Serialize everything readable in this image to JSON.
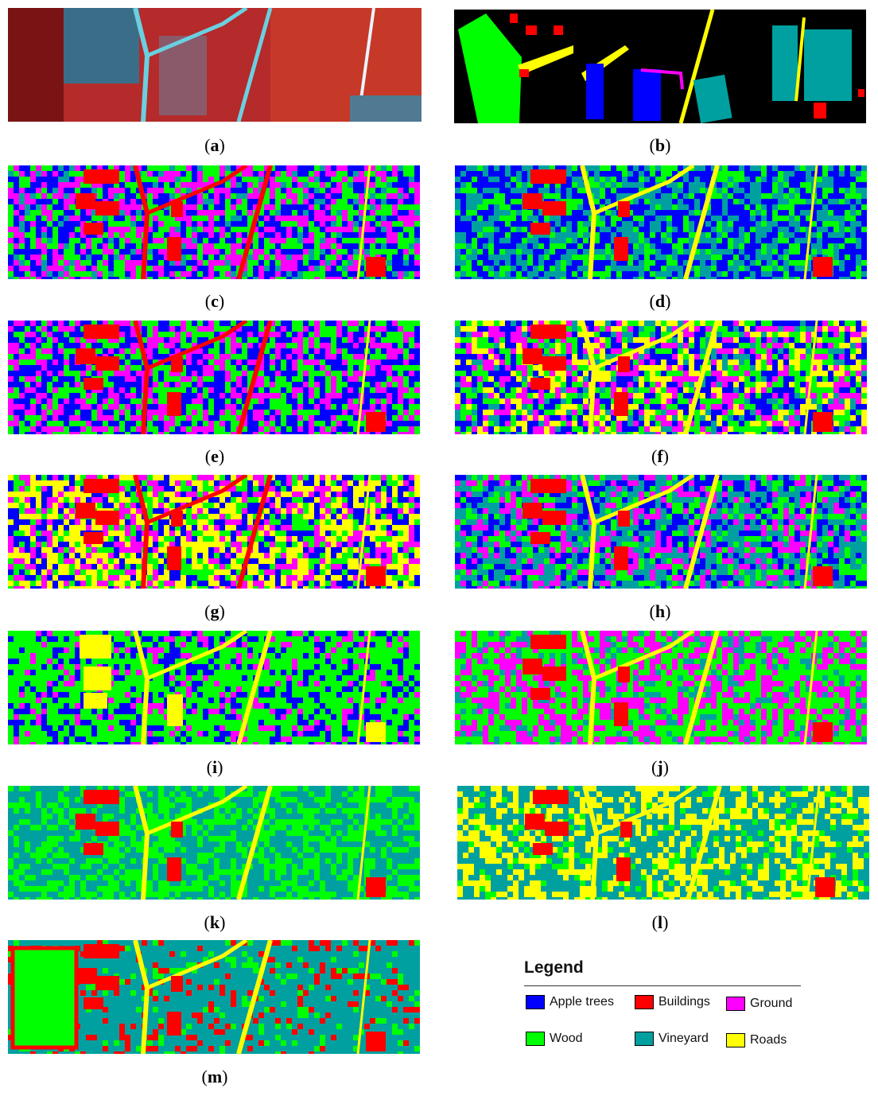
{
  "panels": [
    {
      "id": "a",
      "label": "a",
      "kind": "false-color-image"
    },
    {
      "id": "b",
      "label": "b",
      "kind": "ground-truth"
    },
    {
      "id": "c",
      "label": "c",
      "kind": "classification-map"
    },
    {
      "id": "d",
      "label": "d",
      "kind": "classification-map"
    },
    {
      "id": "e",
      "label": "e",
      "kind": "classification-map"
    },
    {
      "id": "f",
      "label": "f",
      "kind": "classification-map"
    },
    {
      "id": "g",
      "label": "g",
      "kind": "classification-map"
    },
    {
      "id": "h",
      "label": "h",
      "kind": "classification-map"
    },
    {
      "id": "i",
      "label": "i",
      "kind": "classification-map"
    },
    {
      "id": "j",
      "label": "j",
      "kind": "classification-map"
    },
    {
      "id": "k",
      "label": "k",
      "kind": "classification-map"
    },
    {
      "id": "l",
      "label": "l",
      "kind": "classification-map"
    },
    {
      "id": "m",
      "label": "m",
      "kind": "classification-map"
    }
  ],
  "legend": {
    "title": "Legend",
    "items": [
      {
        "label": "Apple trees",
        "color": "#0000ff"
      },
      {
        "label": "Buildings",
        "color": "#ff0000"
      },
      {
        "label": "Ground",
        "color": "#ff00ff"
      },
      {
        "label": "Wood",
        "color": "#00ff00"
      },
      {
        "label": "Vineyard",
        "color": "#00a0a0"
      },
      {
        "label": "Roads",
        "color": "#ffff00"
      }
    ]
  }
}
